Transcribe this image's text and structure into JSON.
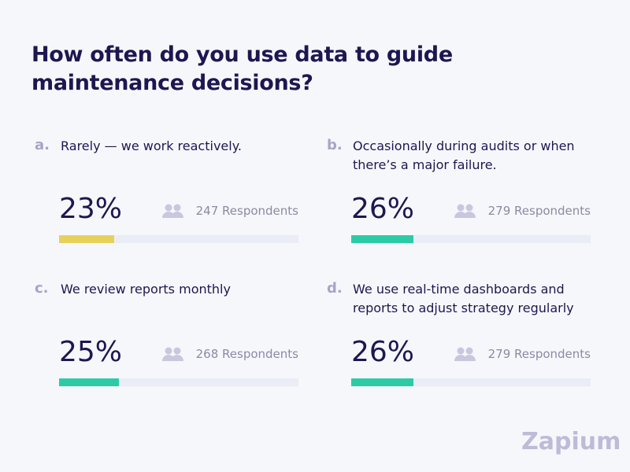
{
  "title": "How often do you use data to guide maintenance decisions?",
  "options": [
    {
      "letter": "a.",
      "text": "Rarely — we work reactively.",
      "percent": 23,
      "percent_label": "23%",
      "respondents": "247 Respondents",
      "color": "#e8d15a"
    },
    {
      "letter": "b.",
      "text": "Occasionally during audits or when there’s a major failure.",
      "percent": 26,
      "percent_label": "26%",
      "respondents": "279 Respondents",
      "color": "#2ccba6"
    },
    {
      "letter": "c.",
      "text": "We review reports monthly",
      "percent": 25,
      "percent_label": "25%",
      "respondents": "268 Respondents",
      "color": "#2ccba6"
    },
    {
      "letter": "d.",
      "text": "We use real-time dashboards and reports to adjust strategy regularly",
      "percent": 26,
      "percent_label": "26%",
      "respondents": "279 Respondents",
      "color": "#2ccba6"
    }
  ],
  "logo": "Zapium"
}
